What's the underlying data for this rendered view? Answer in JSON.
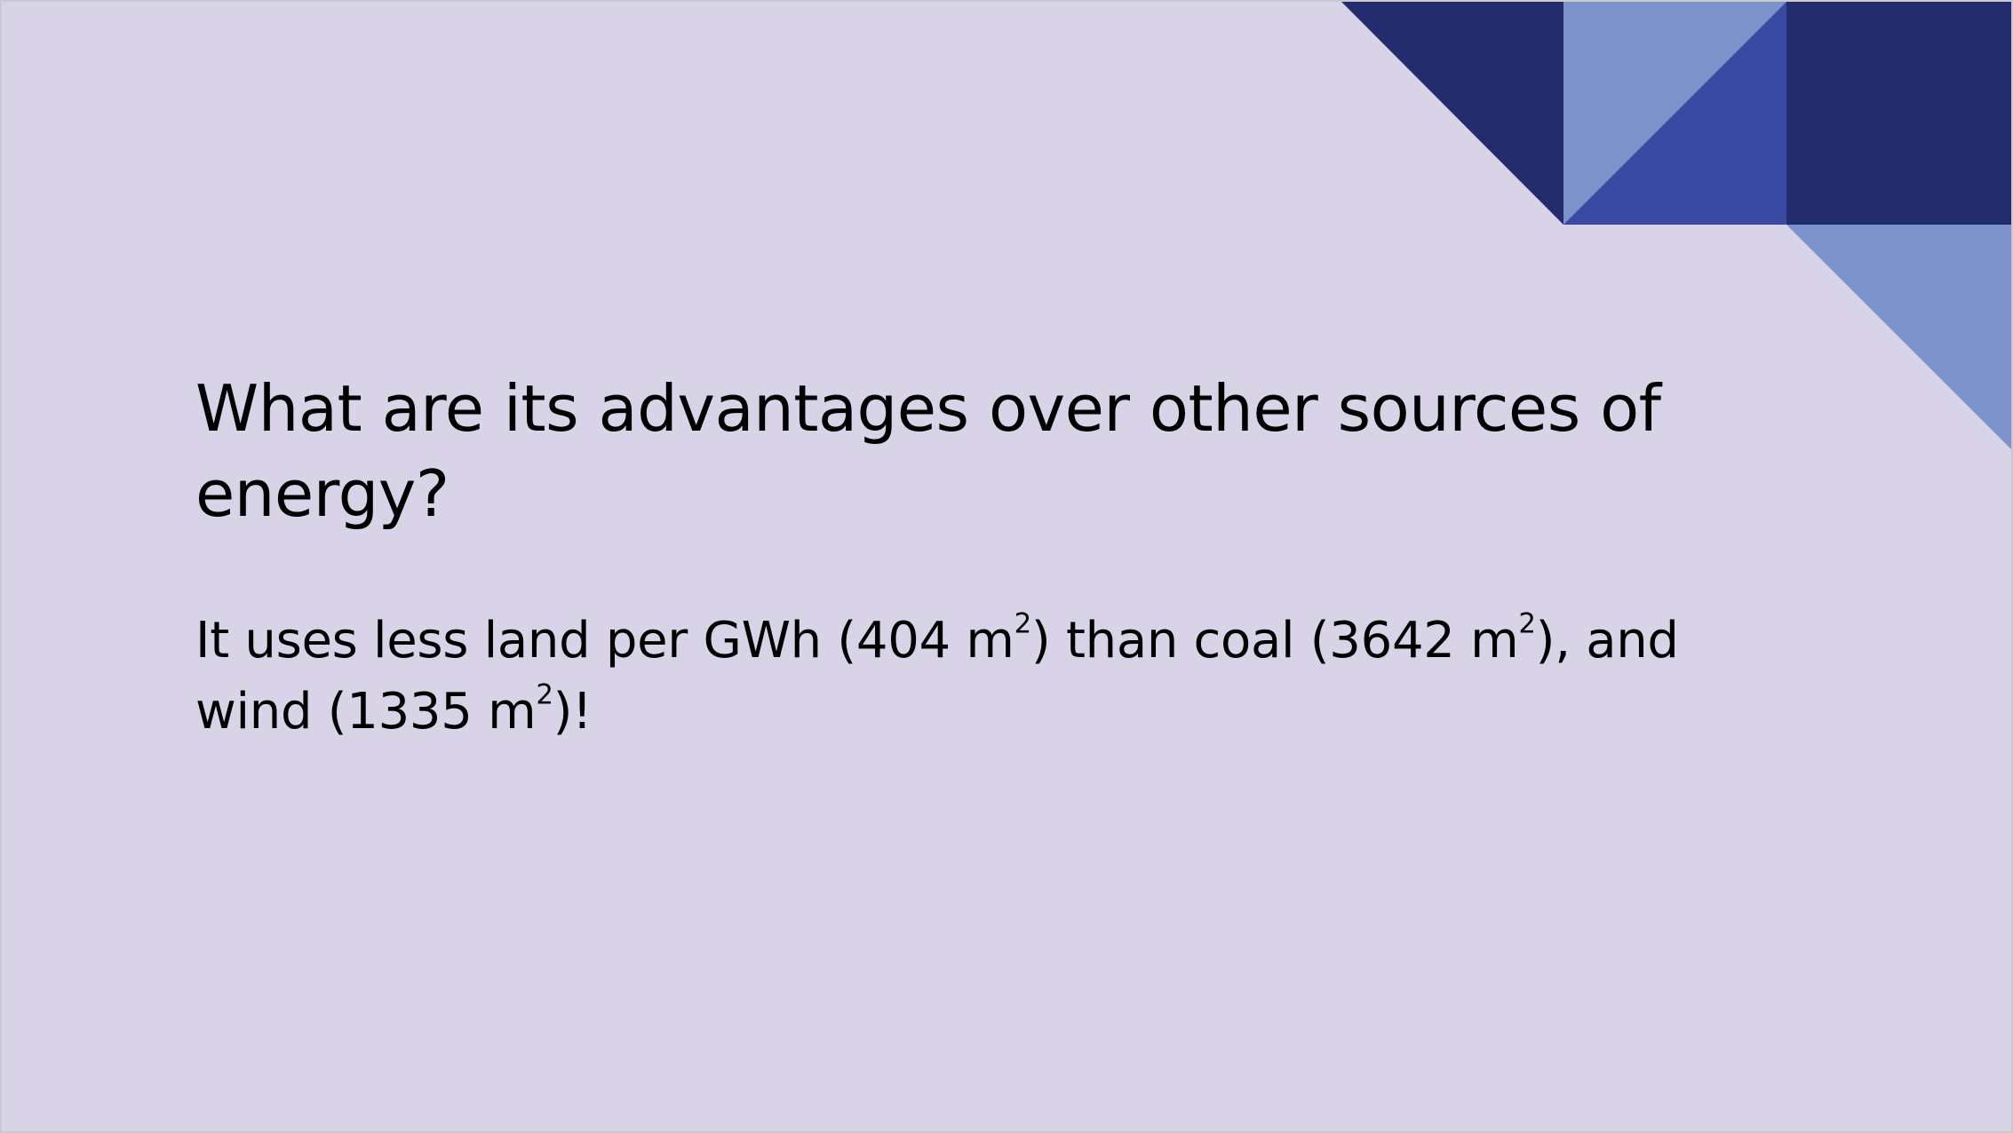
{
  "slide": {
    "title": "What are its advantages over other sources of energy?",
    "body": {
      "part1": "It uses less land per GWh (404 m",
      "sup1": "2",
      "part2": ") than coal (3642 m",
      "sup2": "2",
      "part3": "), and wind (1335 m",
      "sup3": "2",
      "part4": ")!"
    }
  },
  "colors": {
    "background": "#d8d3e7",
    "navy": "#232d6d",
    "periwinkle": "#7b92ca",
    "royal_blue": "#3a4aa4"
  }
}
